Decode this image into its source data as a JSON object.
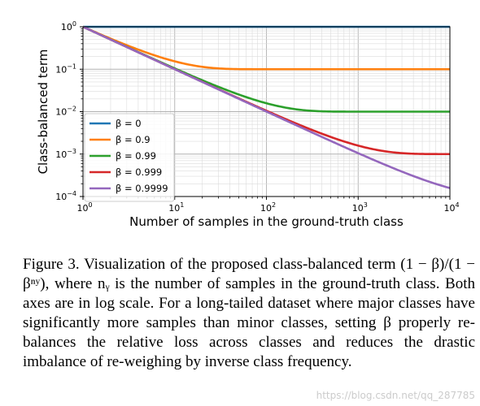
{
  "chart_data": {
    "type": "line",
    "ylabel": "Class-balanced term",
    "xlabel": "Number of samples in the ground-truth class",
    "xscale": "log",
    "yscale": "log",
    "xlim": [
      1,
      10000
    ],
    "ylim": [
      0.0001,
      1
    ],
    "x_tick_labels": [
      {
        "base": "10",
        "exp": "0"
      },
      {
        "base": "10",
        "exp": "1"
      },
      {
        "base": "10",
        "exp": "2"
      },
      {
        "base": "10",
        "exp": "3"
      },
      {
        "base": "10",
        "exp": "4"
      }
    ],
    "y_tick_labels": [
      {
        "base": "10",
        "exp": "0"
      },
      {
        "base": "10",
        "exp": "-1"
      },
      {
        "base": "10",
        "exp": "-2"
      },
      {
        "base": "10",
        "exp": "-3"
      },
      {
        "base": "10",
        "exp": "-4"
      }
    ],
    "grid": true,
    "legend_position": "lower-left",
    "series": [
      {
        "name": "β = 0",
        "beta": 0,
        "color": "#1f77b4"
      },
      {
        "name": "β = 0.9",
        "beta": 0.9,
        "color": "#ff7f0e"
      },
      {
        "name": "β = 0.99",
        "beta": 0.99,
        "color": "#2ca02c"
      },
      {
        "name": "β = 0.999",
        "beta": 0.999,
        "color": "#d62728"
      },
      {
        "name": "β = 0.9999",
        "beta": 0.9999,
        "color": "#9467bd"
      }
    ]
  },
  "caption": {
    "text": "Figure 3. Visualization of the proposed class-balanced term (1 − β)/(1 − βⁿʸ), where nᵧ is the number of samples in the ground-truth class. Both axes are in log scale. For a long-tailed dataset where major classes have significantly more samples than minor classes, setting β properly re-balances the relative loss across classes and reduces the drastic imbalance of re-weighing by inverse class frequency."
  },
  "watermark": "https://blog.csdn.net/qq_287785"
}
